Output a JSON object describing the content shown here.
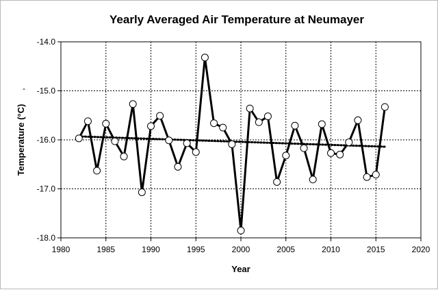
{
  "chart_data": {
    "type": "line",
    "title": "Yearly Averaged Air Temperature at Neumayer",
    "xlabel": "Year",
    "ylabel": "Temperature (°C)",
    "ylabel_marker": "-",
    "xlim": [
      1980,
      2020
    ],
    "ylim": [
      -18.0,
      -14.0
    ],
    "xticks": [
      "1980",
      "1985",
      "1990",
      "1995",
      "2000",
      "2005",
      "2010",
      "2015",
      "2020"
    ],
    "yticks": [
      "-14.0",
      "-15.0",
      "-16.0",
      "-17.0",
      "-18.0"
    ],
    "grid": true,
    "series": [
      {
        "color": "#000000",
        "marker": "circle",
        "x": [
          1982,
          1983,
          1984,
          1985,
          1986,
          1987,
          1988,
          1989,
          1990,
          1991,
          1992,
          1993,
          1994,
          1995,
          1996,
          1997,
          1998,
          1999,
          2000,
          2001,
          2002,
          2003,
          2004,
          2005,
          2006,
          2007,
          2008,
          2009,
          2010,
          2011,
          2012,
          2013,
          2014,
          2015,
          2016
        ],
        "y": [
          -15.97,
          -15.62,
          -16.63,
          -15.67,
          -16.03,
          -16.34,
          -15.27,
          -17.07,
          -15.72,
          -15.51,
          -16.01,
          -16.55,
          -16.07,
          -16.25,
          -14.32,
          -15.66,
          -15.75,
          -16.09,
          -17.85,
          -15.36,
          -15.64,
          -15.52,
          -16.86,
          -16.32,
          -15.71,
          -16.17,
          -16.81,
          -15.68,
          -16.27,
          -16.3,
          -16.05,
          -15.6,
          -16.76,
          -16.71,
          -15.33
        ]
      }
    ],
    "trendline": {
      "style": "dotted",
      "color": "#000000",
      "x": [
        1982,
        2016
      ],
      "y": [
        -15.93,
        -16.14
      ]
    }
  }
}
